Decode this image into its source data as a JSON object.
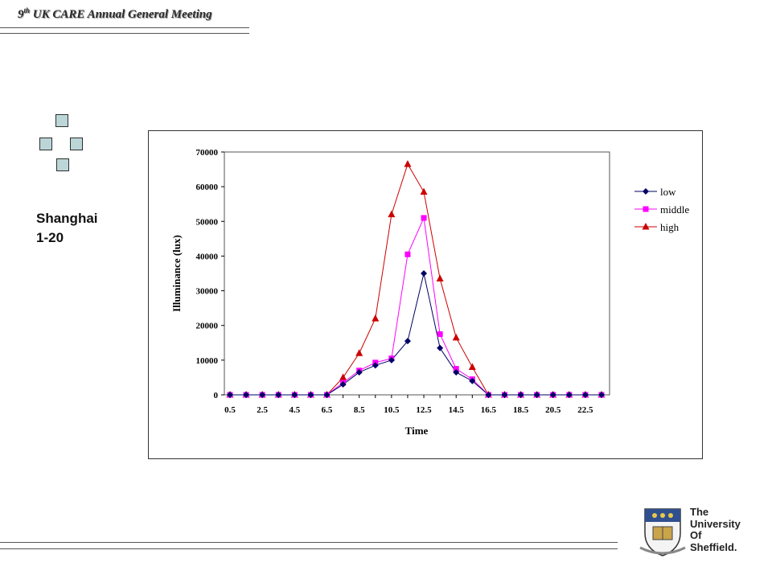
{
  "header": {
    "ordinal": "9",
    "ordinal_suffix": "th",
    "title_rest": "UK CARE Annual General Meeting"
  },
  "side_label": {
    "line1": "Shanghai",
    "line2": "1-20"
  },
  "logo": {
    "line1": "The",
    "line2": "University",
    "line3": "Of",
    "line4": "Sheffield."
  },
  "colors": {
    "low": "#000066",
    "middle": "#ff00ff",
    "high": "#cc0000",
    "decor_square": "#bcd6d8"
  },
  "chart_data": {
    "type": "line",
    "title": "",
    "xlabel": "Time",
    "ylabel": "Illuminance (lux)",
    "ylim": [
      0,
      70000
    ],
    "y_ticks": [
      0,
      10000,
      20000,
      30000,
      40000,
      50000,
      60000,
      70000
    ],
    "x_tick_labels": [
      "0.5",
      "2.5",
      "4.5",
      "6.5",
      "8.5",
      "10.5",
      "12.5",
      "14.5",
      "16.5",
      "18.5",
      "20.5",
      "22.5"
    ],
    "x": [
      0.5,
      1.5,
      2.5,
      3.5,
      4.5,
      5.5,
      6.5,
      7.5,
      8.5,
      9.5,
      10.5,
      11.5,
      12.5,
      13.5,
      14.5,
      15.5,
      16.5,
      17.5,
      18.5,
      19.5,
      20.5,
      21.5,
      22.5,
      23.5
    ],
    "xlim": [
      0.5,
      23.5
    ],
    "grid": false,
    "legend_position": "right",
    "series": [
      {
        "name": "low",
        "marker": "diamond",
        "values": [
          0,
          0,
          0,
          0,
          0,
          0,
          0,
          3000,
          6500,
          8500,
          10000,
          15500,
          35000,
          13500,
          6500,
          4000,
          0,
          0,
          0,
          0,
          0,
          0,
          0,
          0
        ]
      },
      {
        "name": "middle",
        "marker": "square",
        "values": [
          0,
          0,
          0,
          0,
          0,
          0,
          0,
          3500,
          7000,
          9300,
          10500,
          40500,
          51000,
          17500,
          7500,
          4500,
          0,
          0,
          0,
          0,
          0,
          0,
          0,
          0
        ]
      },
      {
        "name": "high",
        "marker": "triangle",
        "values": [
          0,
          0,
          0,
          0,
          0,
          0,
          0,
          5000,
          12000,
          22000,
          52000,
          66500,
          58500,
          33500,
          16500,
          8000,
          0,
          0,
          0,
          0,
          0,
          0,
          0,
          0
        ]
      }
    ]
  }
}
